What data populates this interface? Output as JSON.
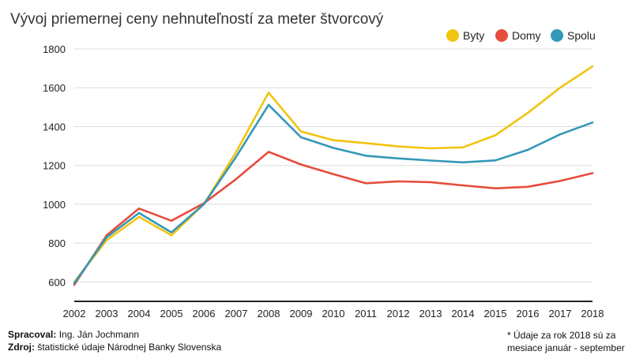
{
  "chart_data": {
    "type": "line",
    "title": "Vývoj priemernej ceny nehnuteľností za meter štvorcový",
    "x": [
      "2002",
      "2003",
      "2004",
      "2005",
      "2006",
      "2007",
      "2008",
      "2009",
      "2010",
      "2011",
      "2012",
      "2013",
      "2014",
      "2015",
      "2016",
      "2017",
      "2018"
    ],
    "y_ticks": [
      600,
      800,
      1000,
      1200,
      1400,
      1600,
      1800
    ],
    "ylim": [
      500,
      1800
    ],
    "grid": true,
    "legend_position": "top-right",
    "series": [
      {
        "name": "Byty",
        "color": "#f1c40f",
        "values": [
          600,
          815,
          935,
          840,
          1000,
          1270,
          1575,
          1375,
          1330,
          1315,
          1298,
          1288,
          1293,
          1355,
          1470,
          1600,
          1710
        ]
      },
      {
        "name": "Domy",
        "color": "#e74c3c",
        "values": [
          585,
          840,
          978,
          915,
          1005,
          1130,
          1270,
          1205,
          1155,
          1108,
          1118,
          1114,
          1097,
          1082,
          1090,
          1120,
          1160
        ]
      },
      {
        "name": "Spolu",
        "color": "#3498b8",
        "values": [
          593,
          830,
          955,
          855,
          1000,
          1245,
          1512,
          1345,
          1290,
          1250,
          1236,
          1225,
          1216,
          1226,
          1280,
          1360,
          1421
        ]
      }
    ]
  },
  "footer": {
    "author_key": "Spracoval:",
    "author_value": " Ing. Ján Jochmann",
    "source_key": "Zdroj:",
    "source_value": " štatistické údaje Národnej Banky Slovenska",
    "note_line1": "* Údaje za rok 2018 sú za",
    "note_line2": "mesiace január - september"
  }
}
